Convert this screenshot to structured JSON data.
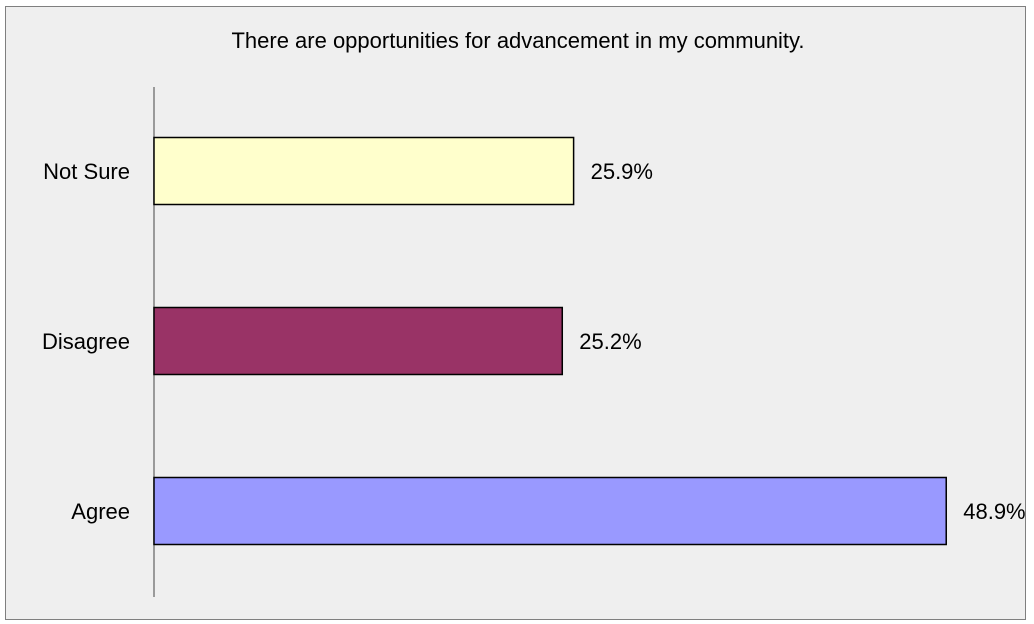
{
  "chart_data": {
    "type": "bar",
    "orientation": "horizontal",
    "title": "There are opportunities for advancement in my community.",
    "xlabel": "",
    "ylabel": "",
    "categories": [
      "Not Sure",
      "Disagree",
      "Agree"
    ],
    "values": [
      25.9,
      25.2,
      48.9
    ],
    "value_labels": [
      "25.9%",
      "25.2%",
      "48.9%"
    ],
    "bar_colors": [
      "#ffffcc",
      "#993366",
      "#9999ff"
    ],
    "bar_edge_color": "#000000",
    "xlim": [
      0,
      53.7
    ],
    "grid": false,
    "legend": "none"
  }
}
